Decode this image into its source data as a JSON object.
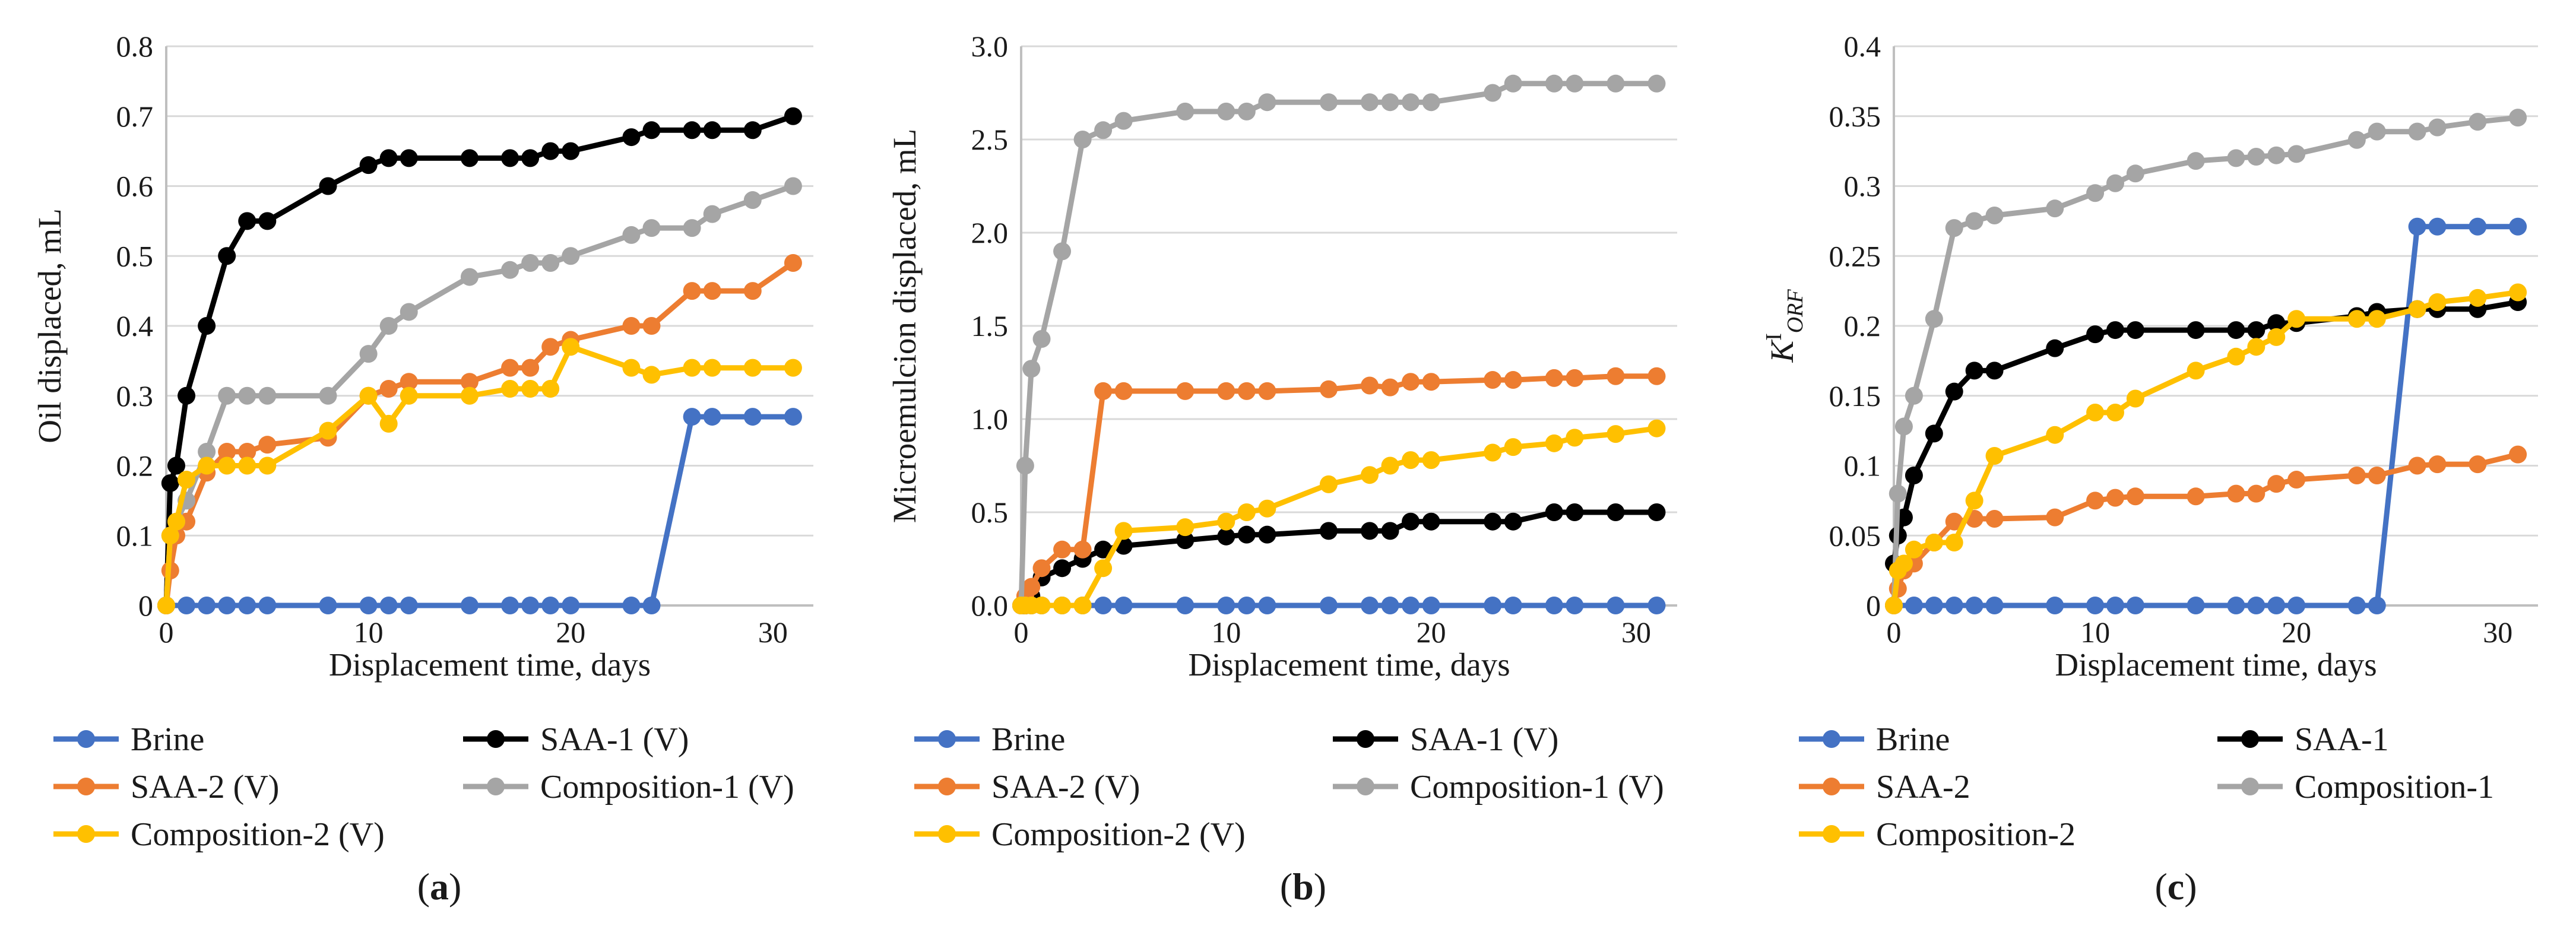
{
  "figure": {
    "colors": {
      "Brine": "#4472C4",
      "SAA-1": "#000000",
      "SAA-2": "#ED7D31",
      "Composition-1": "#A5A5A5",
      "Composition-2": "#FFC000",
      "grid": "#d9d9d9",
      "axis": "#bfbfbf"
    }
  },
  "chart_data": [
    {
      "type": "line",
      "panel_label": "a",
      "label_prefix": "(",
      "label_suffix": ")",
      "xlabel": "Displacement time, days",
      "ylabel": "Oil displaced, mL",
      "xlim": [
        0,
        32
      ],
      "ylim": [
        0,
        0.8
      ],
      "xticks": [
        "0",
        "10",
        "20",
        "30"
      ],
      "yticks": [
        "0",
        "0.1",
        "0.2",
        "0.3",
        "0.4",
        "0.5",
        "0.6",
        "0.7",
        "0.8"
      ],
      "grid": true,
      "legend": [
        "Brine",
        "SAA-1 (V)",
        "SAA-2 (V)",
        "Composition-1 (V)",
        "Composition-2 (V)"
      ],
      "series": [
        {
          "name": "Brine",
          "color_key": "Brine",
          "x": [
            0,
            1,
            2,
            3,
            4,
            5,
            8,
            10,
            11,
            12,
            15,
            17,
            18,
            19,
            20,
            23,
            24,
            26,
            27,
            29,
            31
          ],
          "y": [
            0,
            0,
            0,
            0,
            0,
            0,
            0,
            0,
            0,
            0,
            0,
            0,
            0,
            0,
            0,
            0,
            0,
            0.27,
            0.27,
            0.27,
            0.27
          ]
        },
        {
          "name": "SAA-1 (V)",
          "color_key": "SAA-1",
          "x": [
            0,
            0.2,
            0.5,
            1,
            2,
            3,
            4,
            5,
            8,
            10,
            11,
            12,
            15,
            17,
            18,
            19,
            20,
            23,
            24,
            26,
            27,
            29,
            31
          ],
          "y": [
            0,
            0.175,
            0.2,
            0.3,
            0.4,
            0.5,
            0.55,
            0.55,
            0.6,
            0.63,
            0.64,
            0.64,
            0.64,
            0.64,
            0.64,
            0.65,
            0.65,
            0.67,
            0.68,
            0.68,
            0.68,
            0.68,
            0.7
          ]
        },
        {
          "name": "SAA-2 (V)",
          "color_key": "SAA-2",
          "x": [
            0,
            0.2,
            0.5,
            1,
            2,
            3,
            4,
            5,
            8,
            10,
            11,
            12,
            15,
            17,
            18,
            19,
            20,
            23,
            24,
            26,
            27,
            29,
            31
          ],
          "y": [
            0,
            0.05,
            0.1,
            0.12,
            0.19,
            0.22,
            0.22,
            0.23,
            0.24,
            0.3,
            0.31,
            0.32,
            0.32,
            0.34,
            0.34,
            0.37,
            0.38,
            0.4,
            0.4,
            0.45,
            0.45,
            0.45,
            0.49
          ]
        },
        {
          "name": "Composition-1 (V)",
          "color_key": "Composition-1",
          "x": [
            0,
            0.2,
            0.5,
            1,
            2,
            3,
            4,
            5,
            8,
            10,
            11,
            12,
            15,
            17,
            18,
            19,
            20,
            23,
            24,
            26,
            27,
            29,
            31
          ],
          "y": [
            0,
            0.1,
            0.12,
            0.15,
            0.22,
            0.3,
            0.3,
            0.3,
            0.3,
            0.36,
            0.4,
            0.42,
            0.47,
            0.48,
            0.49,
            0.49,
            0.5,
            0.53,
            0.54,
            0.54,
            0.56,
            0.58,
            0.6
          ]
        },
        {
          "name": "Composition-2 (V)",
          "color_key": "Composition-2",
          "x": [
            0,
            0.2,
            0.5,
            1,
            2,
            3,
            4,
            5,
            8,
            10,
            11,
            12,
            15,
            17,
            18,
            19,
            20,
            23,
            24,
            26,
            27,
            29,
            31
          ],
          "y": [
            0,
            0.1,
            0.12,
            0.18,
            0.2,
            0.2,
            0.2,
            0.2,
            0.25,
            0.3,
            0.26,
            0.3,
            0.3,
            0.31,
            0.31,
            0.31,
            0.37,
            0.34,
            0.33,
            0.34,
            0.34,
            0.34,
            0.34
          ]
        }
      ]
    },
    {
      "type": "line",
      "panel_label": "b",
      "label_prefix": "(",
      "label_suffix": ")",
      "xlabel": "Displacement time, days",
      "ylabel": "Microemulcion displaced, mL",
      "xlim": [
        0,
        32
      ],
      "ylim": [
        0,
        3.0
      ],
      "xticks": [
        "0",
        "10",
        "20",
        "30"
      ],
      "yticks": [
        "0.0",
        "0.5",
        "1.0",
        "1.5",
        "2.0",
        "2.5",
        "3.0"
      ],
      "grid": true,
      "legend": [
        "Brine",
        "SAA-1 (V)",
        "SAA-2 (V)",
        "Composition-1 (V)",
        "Composition-2 (V)"
      ],
      "series": [
        {
          "name": "Brine",
          "color_key": "Brine",
          "x": [
            0,
            0.2,
            0.5,
            1,
            2,
            3,
            4,
            5,
            8,
            10,
            11,
            12,
            15,
            17,
            18,
            19,
            20,
            23,
            24,
            26,
            27,
            29,
            31
          ],
          "y": [
            0,
            0,
            0,
            0,
            0,
            0,
            0,
            0,
            0,
            0,
            0,
            0,
            0,
            0,
            0,
            0,
            0,
            0,
            0,
            0,
            0,
            0,
            0
          ]
        },
        {
          "name": "SAA-1 (V)",
          "color_key": "SAA-1",
          "x": [
            0,
            0.2,
            0.5,
            1,
            2,
            3,
            4,
            5,
            8,
            10,
            11,
            12,
            15,
            17,
            18,
            19,
            20,
            23,
            24,
            26,
            27,
            29,
            31
          ],
          "y": [
            0,
            0,
            0.05,
            0.15,
            0.2,
            0.25,
            0.3,
            0.32,
            0.35,
            0.37,
            0.38,
            0.38,
            0.4,
            0.4,
            0.4,
            0.45,
            0.45,
            0.45,
            0.45,
            0.5,
            0.5,
            0.5,
            0.5
          ]
        },
        {
          "name": "SAA-2 (V)",
          "color_key": "SAA-2",
          "x": [
            0,
            0.2,
            0.5,
            1,
            2,
            3,
            4,
            5,
            8,
            10,
            11,
            12,
            15,
            17,
            18,
            19,
            20,
            23,
            24,
            26,
            27,
            29,
            31
          ],
          "y": [
            0,
            0.05,
            0.1,
            0.2,
            0.3,
            0.3,
            1.15,
            1.15,
            1.15,
            1.15,
            1.15,
            1.15,
            1.16,
            1.18,
            1.17,
            1.2,
            1.2,
            1.21,
            1.21,
            1.22,
            1.22,
            1.23,
            1.23
          ]
        },
        {
          "name": "Composition-1 (V)",
          "color_key": "Composition-1",
          "x": [
            0,
            0.2,
            0.5,
            1,
            2,
            3,
            4,
            5,
            8,
            10,
            11,
            12,
            15,
            17,
            18,
            19,
            20,
            23,
            24,
            26,
            27,
            29,
            31
          ],
          "y": [
            0,
            0.75,
            1.27,
            1.43,
            1.9,
            2.5,
            2.55,
            2.6,
            2.65,
            2.65,
            2.65,
            2.7,
            2.7,
            2.7,
            2.7,
            2.7,
            2.7,
            2.75,
            2.8,
            2.8,
            2.8,
            2.8,
            2.8
          ]
        },
        {
          "name": "Composition-2 (V)",
          "color_key": "Composition-2",
          "x": [
            0,
            0.2,
            0.5,
            1,
            2,
            3,
            4,
            5,
            8,
            10,
            11,
            12,
            15,
            17,
            18,
            19,
            20,
            23,
            24,
            26,
            27,
            29,
            31
          ],
          "y": [
            0,
            0,
            0,
            0,
            0,
            0,
            0.2,
            0.4,
            0.42,
            0.45,
            0.5,
            0.52,
            0.65,
            0.7,
            0.75,
            0.78,
            0.78,
            0.82,
            0.85,
            0.87,
            0.9,
            0.92,
            0.95
          ]
        }
      ]
    },
    {
      "type": "line",
      "panel_label": "c",
      "label_prefix": "(",
      "label_suffix": ")",
      "xlabel": "Displacement time, days",
      "ylabel_main": "K",
      "ylabel_sup": "I",
      "ylabel_sub": "ORF",
      "xlim": [
        0,
        32
      ],
      "ylim": [
        0,
        0.4
      ],
      "xticks": [
        "0",
        "10",
        "20",
        "30"
      ],
      "yticks": [
        "0",
        "0.05",
        "0.1",
        "0.15",
        "0.2",
        "0.25",
        "0.3",
        "0.35",
        "0.4"
      ],
      "grid": true,
      "legend": [
        "Brine",
        "SAA-1",
        "SAA-2",
        "Composition-1",
        "Composition-2"
      ],
      "series": [
        {
          "name": "Brine",
          "color_key": "Brine",
          "x": [
            0,
            1,
            2,
            3,
            4,
            5,
            8,
            10,
            11,
            12,
            15,
            17,
            18,
            19,
            20,
            23,
            24,
            26,
            27,
            29,
            31
          ],
          "y": [
            0,
            0,
            0,
            0,
            0,
            0,
            0,
            0,
            0,
            0,
            0,
            0,
            0,
            0,
            0,
            0,
            0,
            0.271,
            0.271,
            0.271,
            0.271
          ]
        },
        {
          "name": "SAA-1",
          "color_key": "SAA-1",
          "x": [
            0,
            0.2,
            0.5,
            1,
            2,
            3,
            4,
            5,
            8,
            10,
            11,
            12,
            15,
            17,
            18,
            19,
            20,
            23,
            24,
            26,
            27,
            29,
            31
          ],
          "y": [
            0.03,
            0.05,
            0.063,
            0.093,
            0.123,
            0.153,
            0.168,
            0.168,
            0.184,
            0.194,
            0.197,
            0.197,
            0.197,
            0.197,
            0.197,
            0.202,
            0.202,
            0.207,
            0.21,
            0.212,
            0.212,
            0.212,
            0.217
          ]
        },
        {
          "name": "SAA-2",
          "color_key": "SAA-2",
          "x": [
            0,
            0.2,
            0.5,
            1,
            2,
            3,
            4,
            5,
            8,
            10,
            11,
            12,
            15,
            17,
            18,
            19,
            20,
            23,
            24,
            26,
            27,
            29,
            31
          ],
          "y": [
            0,
            0.012,
            0.025,
            0.03,
            0.045,
            0.06,
            0.062,
            0.062,
            0.063,
            0.075,
            0.077,
            0.078,
            0.078,
            0.08,
            0.08,
            0.087,
            0.09,
            0.093,
            0.093,
            0.1,
            0.101,
            0.101,
            0.108
          ]
        },
        {
          "name": "Composition-1",
          "color_key": "Composition-1",
          "x": [
            0,
            0.2,
            0.5,
            1,
            2,
            3,
            4,
            5,
            8,
            10,
            11,
            12,
            15,
            17,
            18,
            19,
            20,
            23,
            24,
            26,
            27,
            29,
            31
          ],
          "y": [
            0,
            0.08,
            0.128,
            0.15,
            0.205,
            0.27,
            0.275,
            0.279,
            0.284,
            0.295,
            0.302,
            0.309,
            0.318,
            0.32,
            0.321,
            0.322,
            0.323,
            0.333,
            0.339,
            0.339,
            0.342,
            0.346,
            0.349
          ]
        },
        {
          "name": "Composition-2",
          "color_key": "Composition-2",
          "x": [
            0,
            0.2,
            0.5,
            1,
            2,
            3,
            4,
            5,
            8,
            10,
            11,
            12,
            15,
            17,
            18,
            19,
            20,
            23,
            24,
            26,
            27,
            29,
            31
          ],
          "y": [
            0,
            0.025,
            0.03,
            0.04,
            0.045,
            0.045,
            0.075,
            0.107,
            0.122,
            0.138,
            0.138,
            0.148,
            0.168,
            0.178,
            0.185,
            0.192,
            0.205,
            0.205,
            0.205,
            0.212,
            0.217,
            0.22,
            0.224
          ]
        }
      ]
    }
  ]
}
